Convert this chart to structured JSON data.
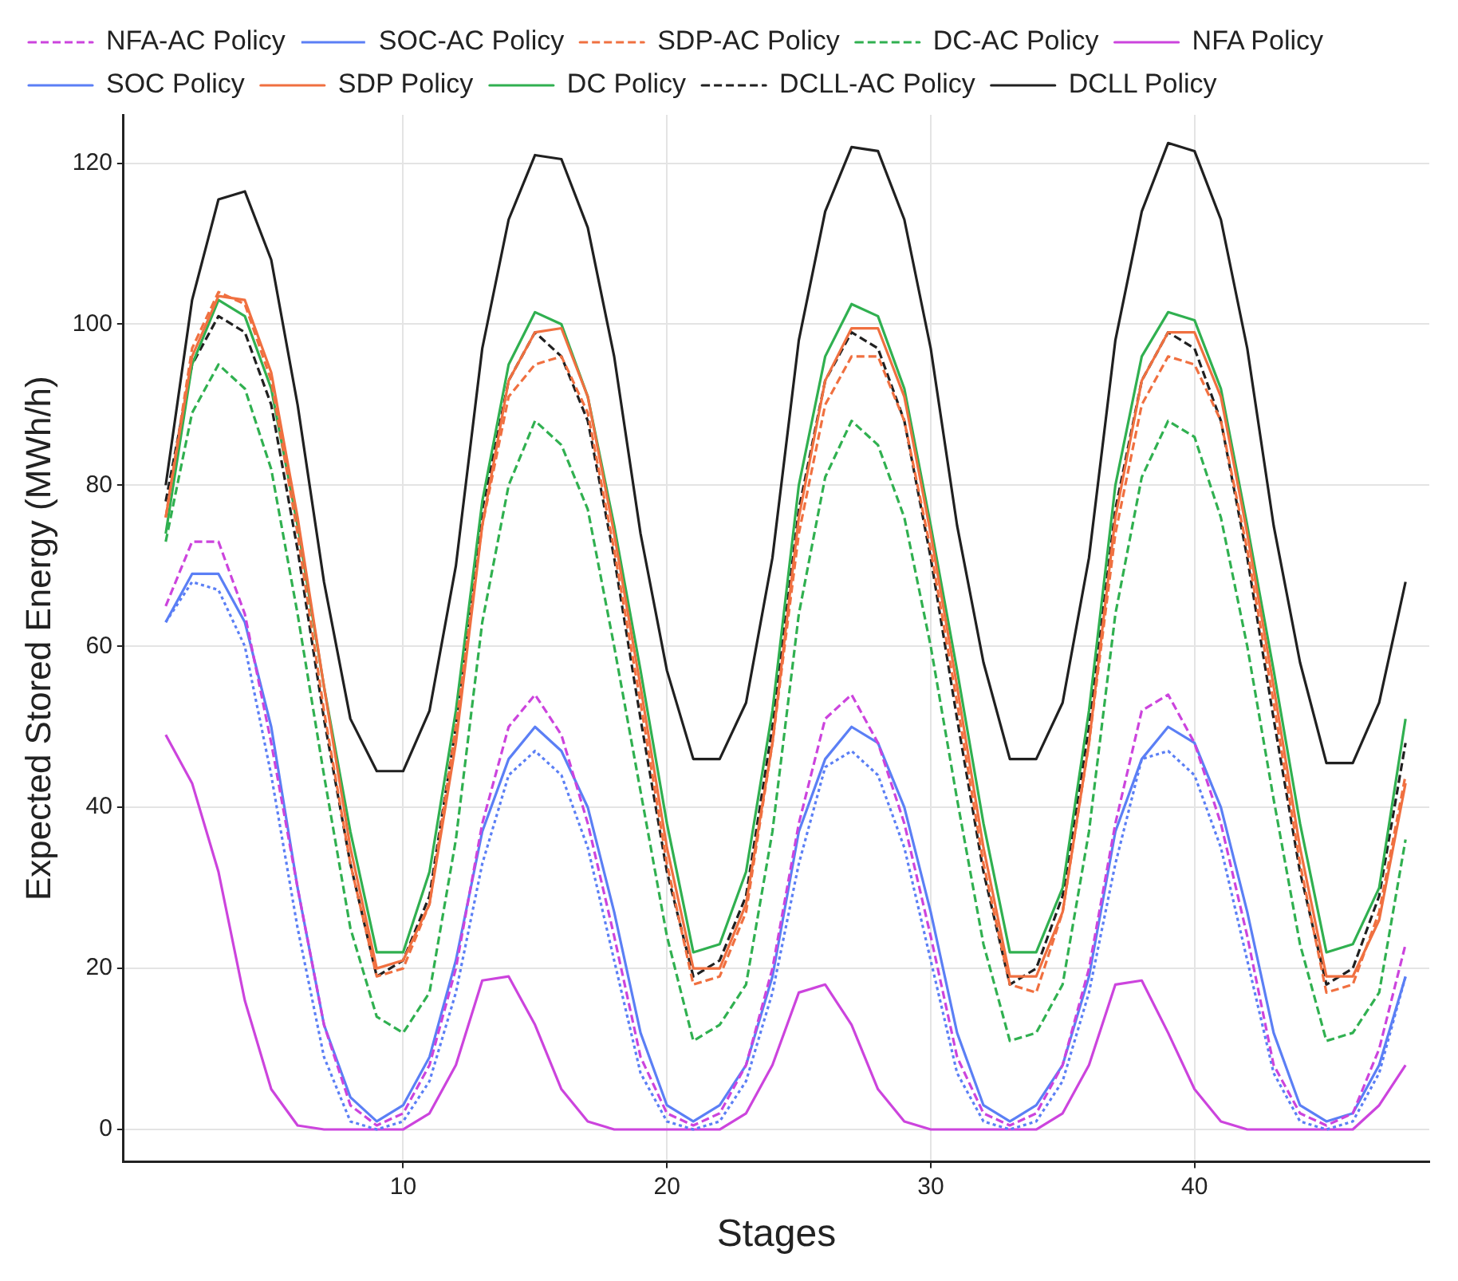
{
  "chart_data": {
    "type": "line",
    "xlabel": "Stages",
    "ylabel": "Expected Stored Energy (MWh/h)",
    "x": [
      1,
      2,
      3,
      4,
      5,
      6,
      7,
      8,
      9,
      10,
      11,
      12,
      13,
      14,
      15,
      16,
      17,
      18,
      19,
      20,
      21,
      22,
      23,
      24,
      25,
      26,
      27,
      28,
      29,
      30,
      31,
      32,
      33,
      34,
      35,
      36,
      37,
      38,
      39,
      40,
      41,
      42,
      43,
      44,
      45,
      46,
      47,
      48
    ],
    "xlim": [
      -0.6,
      48.9
    ],
    "xticks": [
      10,
      20,
      30,
      40
    ],
    "ylim": [
      -4,
      126
    ],
    "yticks": [
      0,
      20,
      40,
      60,
      80,
      100,
      120
    ],
    "grid": true,
    "legend": "top",
    "marker": "none",
    "series": [
      {
        "name": "NFA-AC Policy",
        "color": "#cc44dd",
        "line_style": "dashed",
        "values": [
          65,
          73,
          73,
          64,
          48,
          30,
          13,
          3,
          0.5,
          2,
          8,
          20,
          38,
          50,
          54,
          49,
          38,
          24,
          9,
          2,
          0.5,
          2,
          8,
          20,
          38,
          51,
          54,
          48,
          38,
          24,
          9,
          2,
          0.5,
          2,
          8,
          20,
          38,
          52,
          54,
          48,
          38,
          24,
          8,
          2,
          0.5,
          2,
          10,
          23
        ]
      },
      {
        "name": "SOC-AC Policy",
        "color": "#5b7ff5",
        "line_style": "dotted",
        "values": [
          63,
          68,
          67,
          60,
          44,
          25,
          9,
          1,
          0,
          1,
          6,
          17,
          33,
          44,
          47,
          44,
          35,
          21,
          7,
          1,
          0,
          1,
          6,
          17,
          33,
          45,
          47,
          44,
          35,
          21,
          7,
          1,
          0,
          1,
          6,
          17,
          33,
          46,
          47,
          44,
          35,
          21,
          7,
          1,
          0,
          1,
          7,
          19
        ]
      },
      {
        "name": "SDP-AC Policy",
        "color": "#f07040",
        "line_style": "dashed",
        "values": [
          76,
          97,
          104,
          102.5,
          93,
          74,
          52,
          33,
          19,
          20,
          28,
          50,
          75,
          91,
          95,
          96,
          89,
          72,
          53,
          33,
          18,
          19,
          27,
          48,
          74,
          90,
          96,
          96,
          88,
          72,
          53,
          33,
          18,
          17,
          27,
          48,
          74,
          90,
          96,
          95,
          88,
          72,
          53,
          33,
          17,
          18,
          27,
          44
        ]
      },
      {
        "name": "DC-AC Policy",
        "color": "#30b050",
        "line_style": "dashed",
        "values": [
          73,
          89,
          95,
          92,
          82,
          64,
          44,
          25,
          14,
          12,
          17,
          36,
          63,
          80,
          88,
          85,
          77,
          60,
          42,
          24,
          11,
          13,
          18,
          37,
          64,
          81,
          88,
          85,
          76,
          60,
          41,
          23,
          11,
          12,
          18,
          37,
          64,
          81,
          88,
          86,
          76,
          60,
          41,
          23,
          11,
          12,
          17,
          36
        ]
      },
      {
        "name": "NFA Policy",
        "color": "#cc44dd",
        "line_style": "solid",
        "values": [
          49,
          43,
          32,
          16,
          5,
          0.5,
          0,
          0,
          0,
          0,
          2,
          8,
          18.5,
          19,
          13,
          5,
          1,
          0,
          0,
          0,
          0,
          0,
          2,
          8,
          17,
          18,
          13,
          5,
          1,
          0,
          0,
          0,
          0,
          0,
          2,
          8,
          18,
          18.5,
          12,
          5,
          1,
          0,
          0,
          0,
          0,
          0,
          3,
          8
        ]
      },
      {
        "name": "SOC Policy",
        "color": "#5b7ff5",
        "line_style": "solid",
        "values": [
          63,
          69,
          69,
          63,
          50,
          30,
          13,
          4,
          1,
          3,
          9,
          21,
          37,
          46,
          50,
          47,
          40,
          27,
          12,
          3,
          1,
          3,
          8,
          19,
          37,
          46,
          50,
          48,
          40,
          27,
          12,
          3,
          1,
          3,
          8,
          19,
          37,
          46,
          50,
          48,
          40,
          27,
          12,
          3,
          1,
          2,
          8,
          19
        ]
      },
      {
        "name": "SDP Policy",
        "color": "#f07040",
        "line_style": "solid",
        "values": [
          76,
          96,
          103.5,
          103,
          94,
          76,
          55,
          35,
          20,
          21,
          28,
          48,
          75,
          93,
          99,
          99.5,
          91,
          74,
          55,
          35,
          20,
          20,
          28,
          48,
          76,
          93,
          99.5,
          99.5,
          91,
          74,
          55,
          35,
          19,
          19,
          27,
          48,
          76,
          93,
          99,
          99,
          91,
          74,
          55,
          35,
          19,
          19,
          26,
          43
        ]
      },
      {
        "name": "DC Policy",
        "color": "#30b050",
        "line_style": "solid",
        "values": [
          74,
          95,
          103,
          101,
          92,
          75,
          55,
          37,
          22,
          22,
          32,
          52,
          78,
          95,
          101.5,
          100,
          91,
          75,
          57,
          38,
          22,
          23,
          32,
          52,
          80,
          96,
          102.5,
          101,
          92,
          75,
          57,
          38,
          22,
          22,
          30,
          52,
          80,
          96,
          101.5,
          100.5,
          92,
          75,
          57,
          38,
          22,
          23,
          30,
          51
        ]
      },
      {
        "name": "DCLL-AC Policy",
        "color": "#202020",
        "line_style": "dashed",
        "values": [
          78,
          95,
          101,
          99,
          90,
          72,
          51,
          33,
          19,
          21,
          29,
          50,
          77,
          93,
          99,
          96,
          88,
          71,
          51,
          32,
          19,
          21,
          29,
          50,
          77,
          93,
          99,
          97,
          88,
          71,
          51,
          32,
          18,
          20,
          29,
          50,
          77,
          93,
          99,
          97,
          88,
          71,
          51,
          32,
          18,
          20,
          29,
          48
        ]
      },
      {
        "name": "DCLL Policy",
        "color": "#202020",
        "line_style": "solid",
        "values": [
          80,
          103,
          115.5,
          116.5,
          108,
          90,
          68,
          51,
          44.5,
          44.5,
          52,
          70,
          97,
          113,
          121,
          120.5,
          112,
          96,
          74,
          57,
          46,
          46,
          53,
          71,
          98,
          114,
          122,
          121.5,
          113,
          97,
          75,
          58,
          46,
          46,
          53,
          71,
          98,
          114,
          122.5,
          121.5,
          113,
          97,
          75,
          58,
          45.5,
          45.5,
          53,
          68
        ]
      }
    ]
  }
}
